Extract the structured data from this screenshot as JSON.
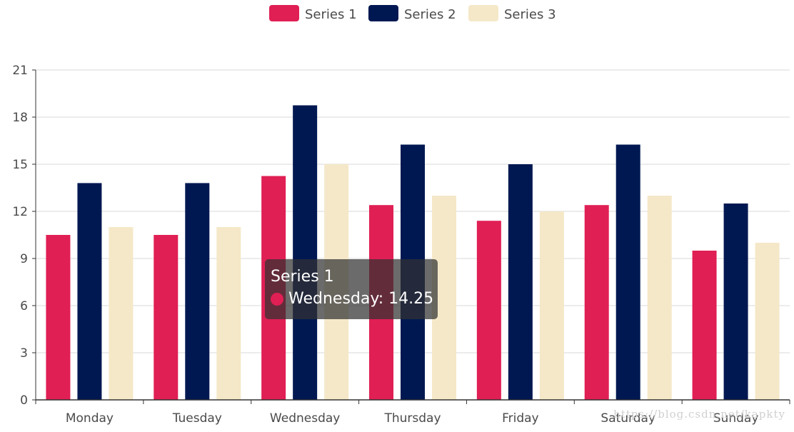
{
  "colors": {
    "series_1": "#e01f54",
    "series_2": "#001852",
    "series_3": "#f5e8c8",
    "grid": "#d9d9d9",
    "axis": "#333333",
    "text": "#4a4a4a"
  },
  "chart_data": {
    "type": "bar",
    "title": "",
    "xlabel": "",
    "ylabel": "",
    "categories": [
      "Monday",
      "Tuesday",
      "Wednesday",
      "Thursday",
      "Friday",
      "Saturday",
      "Sunday"
    ],
    "series": [
      {
        "name": "Series 1",
        "values": [
          10.5,
          10.5,
          14.25,
          12.4,
          11.4,
          12.4,
          9.5
        ]
      },
      {
        "name": "Series 2",
        "values": [
          13.8,
          13.8,
          18.75,
          16.25,
          15.0,
          16.25,
          12.5
        ]
      },
      {
        "name": "Series 3",
        "values": [
          11.0,
          11.0,
          15.0,
          13.0,
          12.0,
          13.0,
          10.0
        ]
      }
    ],
    "ylim": [
      0,
      21
    ],
    "yticks": [
      0,
      3,
      6,
      9,
      12,
      15,
      18,
      21
    ],
    "grid": true,
    "legend_position": "top-center"
  },
  "tooltip": {
    "title": "Series 1",
    "line": "Wednesday: 14.25",
    "color": "#e01f54"
  },
  "watermark": "https://blog.csdn.net/kapkty"
}
